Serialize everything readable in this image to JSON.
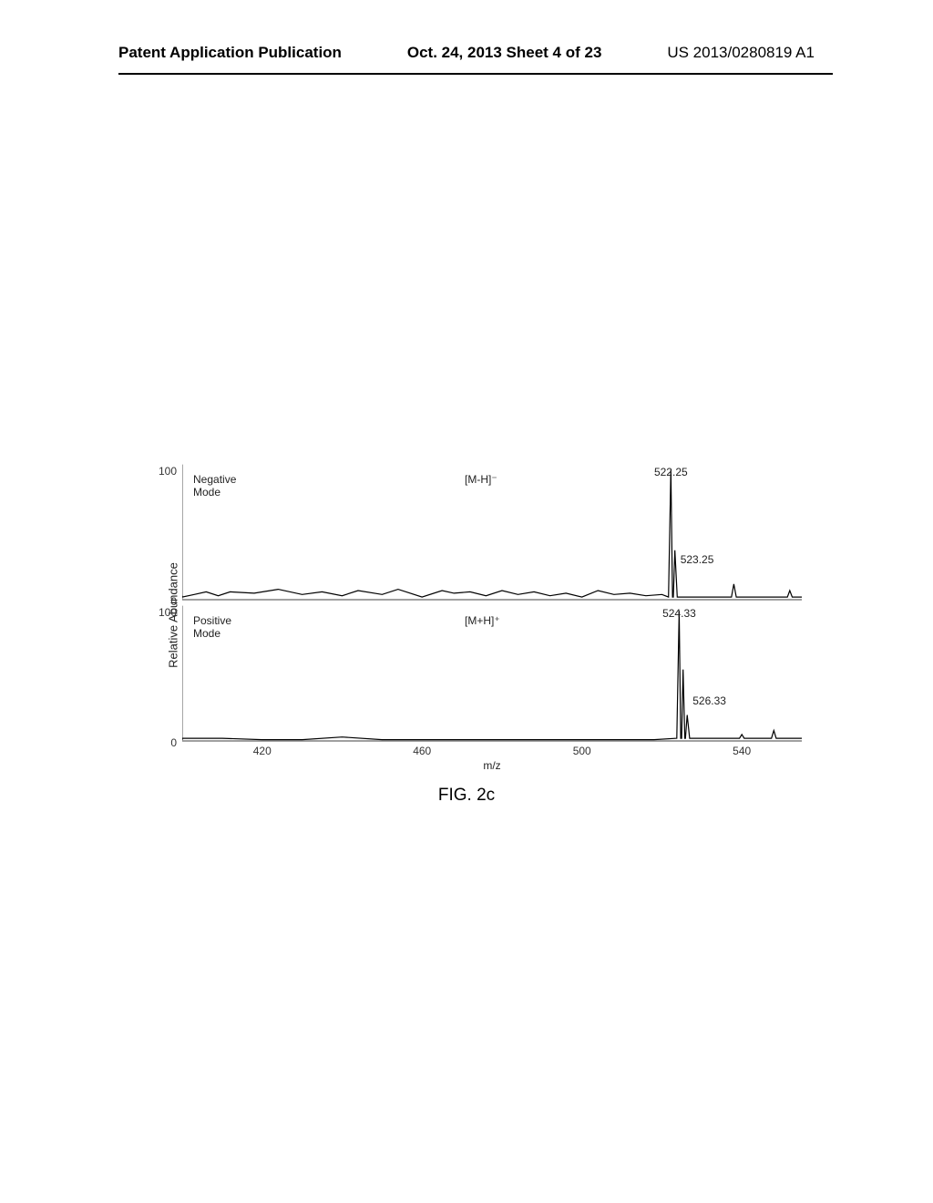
{
  "header": {
    "left": "Patent Application Publication",
    "center": "Oct. 24, 2013  Sheet 4 of 23",
    "right": "US 2013/0280819 A1"
  },
  "figure_caption": "FIG. 2c",
  "ylabel": "Relative Abundance",
  "xlabel": "m/z",
  "xlim": [
    400,
    555
  ],
  "xticks": [
    420,
    460,
    500,
    540
  ],
  "yticks": [
    0,
    100
  ],
  "panels": [
    {
      "mode_label": "Negative\nMode",
      "ion_label": "[M-H]⁻",
      "peak_labels": [
        {
          "mz": 522.25,
          "text": "522.25",
          "pos": "top"
        },
        {
          "mz": 523.25,
          "text": "523.25",
          "pos": "right"
        }
      ],
      "ytick_values": [
        0,
        100
      ],
      "trace_color": "#000000",
      "axis_color": "#808080",
      "baseline_noise": [
        [
          400,
          3
        ],
        [
          403,
          4
        ],
        [
          406,
          6
        ],
        [
          409,
          3
        ],
        [
          412,
          6
        ],
        [
          418,
          5
        ],
        [
          424,
          8
        ],
        [
          430,
          4
        ],
        [
          435,
          6
        ],
        [
          440,
          3
        ],
        [
          444,
          7
        ],
        [
          450,
          4
        ],
        [
          454,
          8
        ],
        [
          460,
          2
        ],
        [
          465,
          7
        ],
        [
          468,
          5
        ],
        [
          472,
          6
        ],
        [
          476,
          3
        ],
        [
          480,
          7
        ],
        [
          484,
          4
        ],
        [
          488,
          6
        ],
        [
          492,
          3
        ],
        [
          496,
          5
        ],
        [
          500,
          2
        ],
        [
          504,
          7
        ],
        [
          508,
          4
        ],
        [
          512,
          5
        ],
        [
          516,
          3
        ],
        [
          520,
          4
        ]
      ],
      "peaks": [
        {
          "mz": 522.25,
          "height": 100
        },
        {
          "mz": 523.25,
          "height": 38
        },
        {
          "mz": 538,
          "height": 12
        },
        {
          "mz": 552,
          "height": 7
        }
      ]
    },
    {
      "mode_label": "Positive\nMode",
      "ion_label": "[M+H]⁺",
      "peak_labels": [
        {
          "mz": 524.33,
          "text": "524.33",
          "pos": "top"
        },
        {
          "mz": 526.33,
          "text": "526.33",
          "pos": "right"
        }
      ],
      "ytick_values": [
        0,
        100
      ],
      "trace_color": "#000000",
      "axis_color": "#808080",
      "baseline_noise": [
        [
          400,
          1
        ],
        [
          410,
          2
        ],
        [
          420,
          1
        ],
        [
          430,
          1
        ],
        [
          440,
          3
        ],
        [
          450,
          1
        ],
        [
          460,
          1
        ],
        [
          470,
          1
        ],
        [
          480,
          1
        ],
        [
          490,
          1
        ],
        [
          500,
          1
        ],
        [
          510,
          1
        ],
        [
          518,
          1
        ]
      ],
      "peaks": [
        {
          "mz": 524.33,
          "height": 100
        },
        {
          "mz": 525.3,
          "height": 55
        },
        {
          "mz": 526.33,
          "height": 20
        },
        {
          "mz": 540,
          "height": 5
        },
        {
          "mz": 548,
          "height": 8
        }
      ]
    }
  ],
  "style": {
    "background_color": "#ffffff",
    "label_fontsize": 12,
    "caption_fontsize": 19,
    "header_fontsize": 17,
    "axis_stroke_width": 1.4,
    "trace_stroke_width": 1.2
  }
}
